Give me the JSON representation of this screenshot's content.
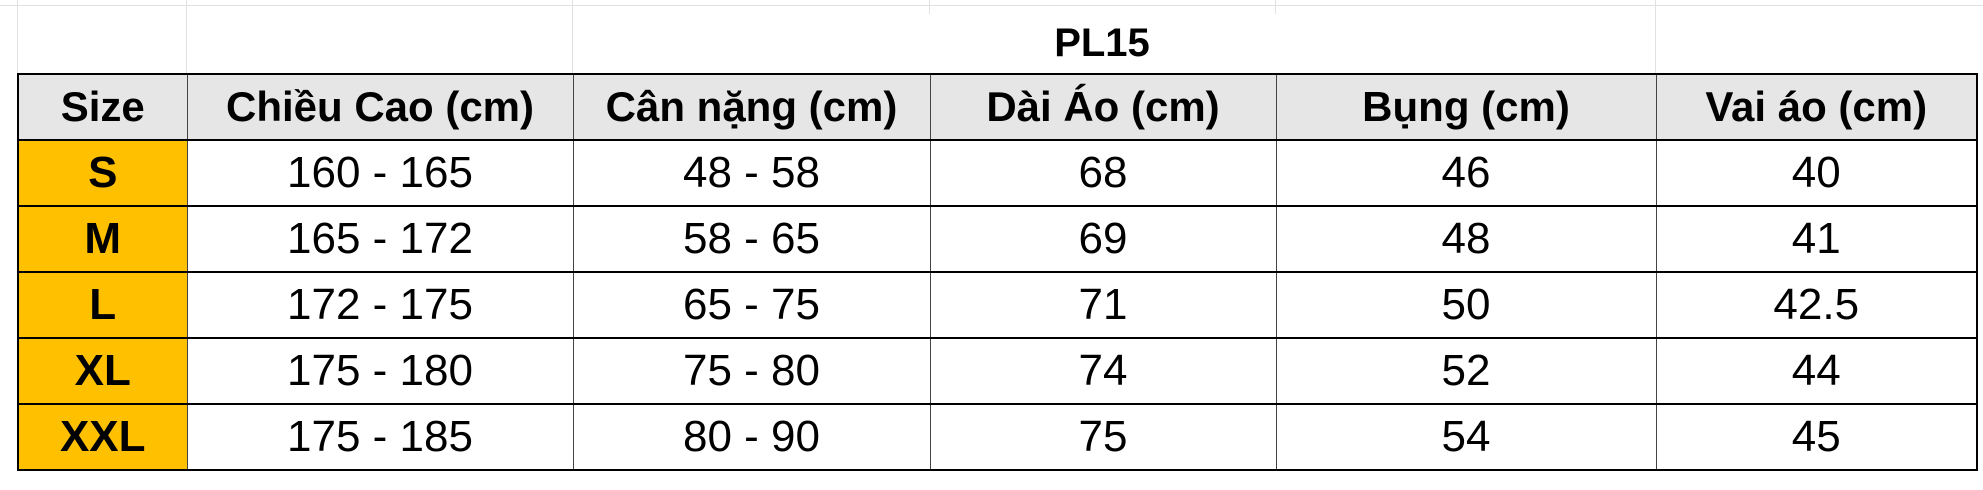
{
  "title": "PL15",
  "colors": {
    "size_fill": "#FFC000",
    "header_fill": "#E7E6E6"
  },
  "table": {
    "headers": [
      "Size",
      "Chiều Cao (cm)",
      "Cân nặng (cm)",
      "Dài Áo (cm)",
      "Bụng (cm)",
      "Vai áo (cm)"
    ],
    "rows": [
      [
        "S",
        "160 - 165",
        "48 - 58",
        "68",
        "46",
        "40"
      ],
      [
        "M",
        "165 - 172",
        "58 - 65",
        "69",
        "48",
        "41"
      ],
      [
        "L",
        "172 - 175",
        "65 - 75",
        "71",
        "50",
        "42.5"
      ],
      [
        "XL",
        "175 - 180",
        "75 - 80",
        "74",
        "52",
        "44"
      ],
      [
        "XXL",
        "175 - 185",
        "80 - 90",
        "75",
        "54",
        "45"
      ]
    ]
  }
}
